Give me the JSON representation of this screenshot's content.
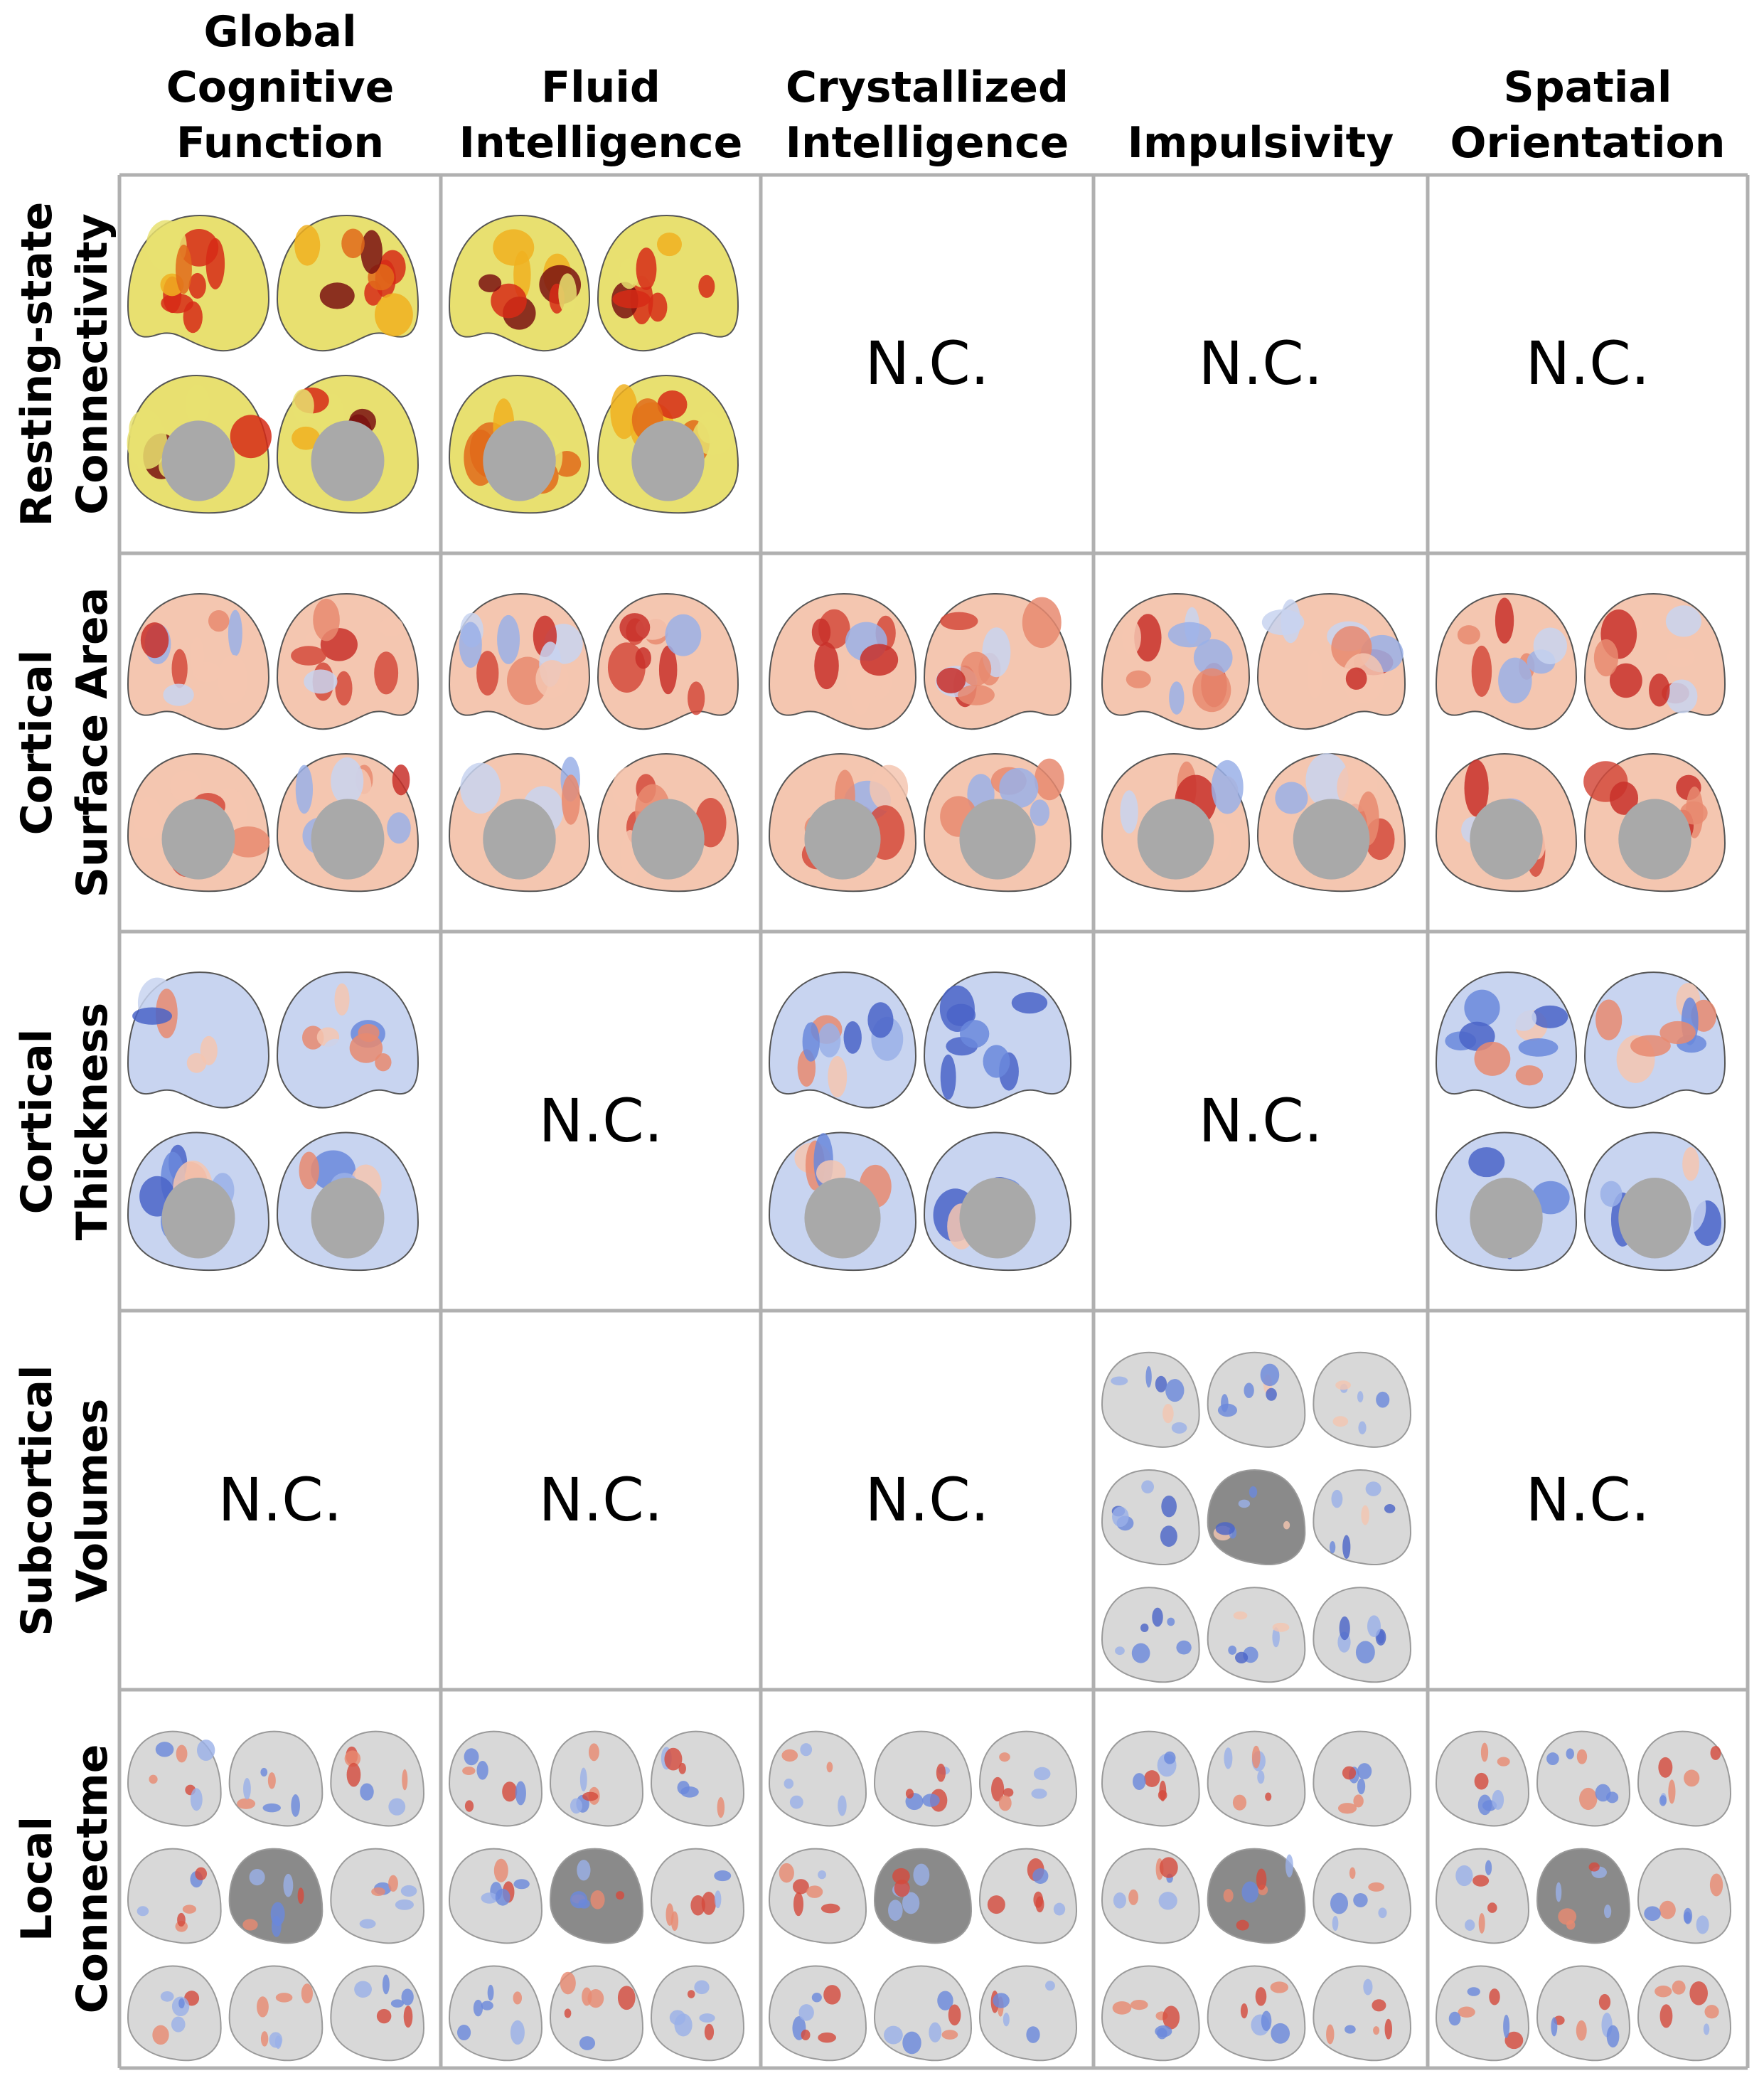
{
  "columns": [
    {
      "lines": [
        "Global",
        "Cognitive",
        "Function"
      ]
    },
    {
      "lines": [
        "Fluid",
        "Intelligence"
      ]
    },
    {
      "lines": [
        "Crystallized",
        "Intelligence"
      ]
    },
    {
      "lines": [
        "Impulsivity"
      ]
    },
    {
      "lines": [
        "Spatial",
        "Orientation"
      ]
    }
  ],
  "rows": [
    {
      "lines": [
        "Resting-state",
        "Connectivity"
      ],
      "style": "rsc"
    },
    {
      "lines": [
        "Cortical",
        "Surface Area"
      ],
      "style": "area"
    },
    {
      "lines": [
        "Cortical",
        "Thickness"
      ],
      "style": "thick"
    },
    {
      "lines": [
        "Subcortical",
        "Volumes"
      ],
      "style": "subc"
    },
    {
      "lines": [
        "Local",
        "Connectme"
      ],
      "style": "local"
    }
  ],
  "nc_label": "N.C.",
  "cells": [
    [
      "brain",
      "brain",
      "nc",
      "nc",
      "nc"
    ],
    [
      "brain",
      "brain",
      "brain",
      "brain",
      "brain"
    ],
    [
      "brain",
      "nc",
      "brain",
      "nc",
      "brain"
    ],
    [
      "nc",
      "nc",
      "nc",
      "slices",
      "nc"
    ],
    [
      "slices",
      "slices",
      "slices",
      "slices",
      "slices"
    ]
  ],
  "palette": {
    "grid_line": "#b0b0b0",
    "cortex_gray": "#a9a9a9",
    "rsc_colors": [
      "#e8e070",
      "#e06a1a",
      "#d62a16",
      "#f0b020",
      "#7a1010"
    ],
    "warm": [
      "#f4c6b0",
      "#e88a70",
      "#d44a3c",
      "#c8302a"
    ],
    "cool": [
      "#c8d4f0",
      "#9ab0e8",
      "#6a88dc",
      "#4a64c8"
    ],
    "slice_gray": "#d8d8d8"
  }
}
